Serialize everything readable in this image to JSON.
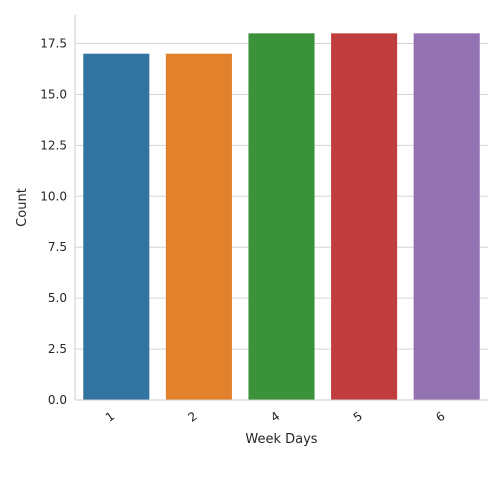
{
  "chart_data": {
    "type": "bar",
    "categories": [
      "1",
      "2",
      "4",
      "5",
      "6"
    ],
    "values": [
      17,
      17,
      18,
      18,
      18
    ],
    "colors": [
      "#3274a1",
      "#e1812c",
      "#3a923a",
      "#c03d3e",
      "#9372b2"
    ],
    "xlabel": "Week Days",
    "ylabel": "Count",
    "ylim": [
      0,
      18.9
    ],
    "yticks": [
      0.0,
      2.5,
      5.0,
      7.5,
      10.0,
      12.5,
      15.0,
      17.5
    ],
    "ytick_labels": [
      "0.0",
      "2.5",
      "5.0",
      "7.5",
      "10.0",
      "12.5",
      "15.0",
      "17.5"
    ],
    "grid": "horizontal",
    "xtick_rotation": "slanted"
  }
}
